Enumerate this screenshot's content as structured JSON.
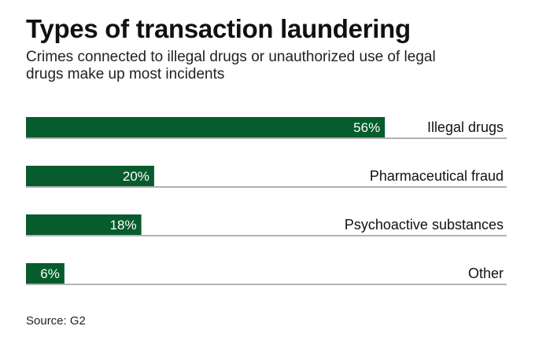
{
  "title": "Types of transaction laundering",
  "subtitle": "Crimes connected to illegal drugs or unauthorized use of legal drugs make up most incidents",
  "source": "Source: G2",
  "colors": {
    "bar": "#065c2c",
    "rule": "#666666",
    "text": "#111111",
    "bar_label": "#ffffff"
  },
  "chart_data": {
    "type": "bar",
    "orientation": "horizontal",
    "categories": [
      "Illegal drugs",
      "Pharmaceutical fraud",
      "Psychoactive substances",
      "Other"
    ],
    "values": [
      56,
      20,
      18,
      6
    ],
    "value_labels": [
      "56%",
      "20%",
      "18%",
      "6%"
    ],
    "unit": "%",
    "xlim": [
      0,
      75
    ],
    "grid": false,
    "legend": "none"
  }
}
